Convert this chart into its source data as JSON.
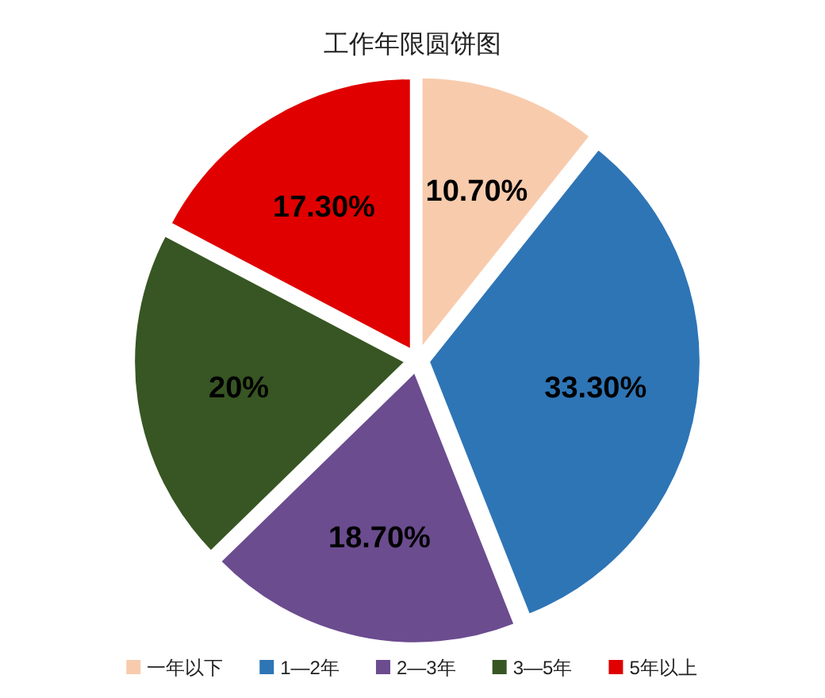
{
  "chart_data": {
    "type": "pie",
    "title": "工作年限圆饼图",
    "categories": [
      "一年以下",
      "1—2年",
      "2—3年",
      "3—5年",
      "5年以上"
    ],
    "values": [
      10.7,
      33.3,
      18.7,
      20,
      17.3
    ],
    "colors": [
      "#f8cbad",
      "#2e75b6",
      "#6b4c8f",
      "#375623",
      "#e00000"
    ],
    "value_labels": [
      "10.70%",
      "33.30%",
      "18.70%",
      "20%",
      "17.30%"
    ],
    "legend": "bottom"
  }
}
